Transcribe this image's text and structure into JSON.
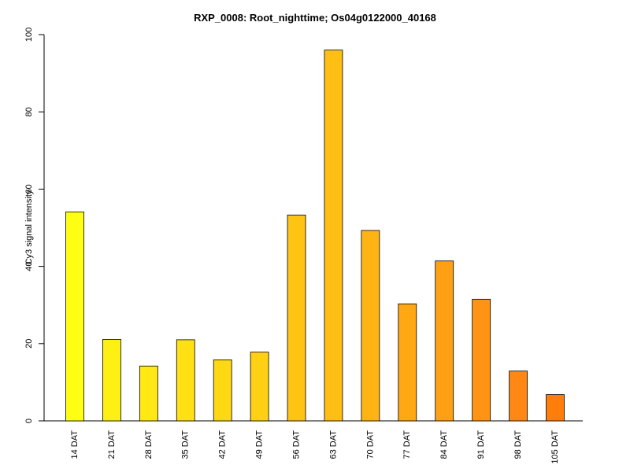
{
  "chart_data": {
    "type": "bar",
    "title": "RXP_0008: Root_nighttime; Os04g0122000_40168",
    "xlabel": "",
    "ylabel": "Cy3 signal intensity",
    "ylim": [
      0,
      100
    ],
    "yticks": [
      0,
      20,
      40,
      60,
      80,
      100
    ],
    "grid": false,
    "categories": [
      "14 DAT",
      "21 DAT",
      "28 DAT",
      "35 DAT",
      "42 DAT",
      "49 DAT",
      "56 DAT",
      "63 DAT",
      "70 DAT",
      "77 DAT",
      "84 DAT",
      "91 DAT",
      "98 DAT",
      "105 DAT"
    ],
    "values": [
      54.1,
      21.1,
      14.2,
      21.0,
      15.8,
      17.8,
      53.3,
      96.0,
      49.3,
      30.3,
      41.4,
      31.5,
      12.9,
      6.8
    ],
    "colors": [
      "#FFFF14",
      "#FFF014",
      "#FFE814",
      "#FFE014",
      "#FFD814",
      "#FFD014",
      "#FFC314",
      "#FFBE14",
      "#FFB414",
      "#FFA814",
      "#FF9F14",
      "#FF9314",
      "#FF8714",
      "#FF7D0A"
    ]
  }
}
